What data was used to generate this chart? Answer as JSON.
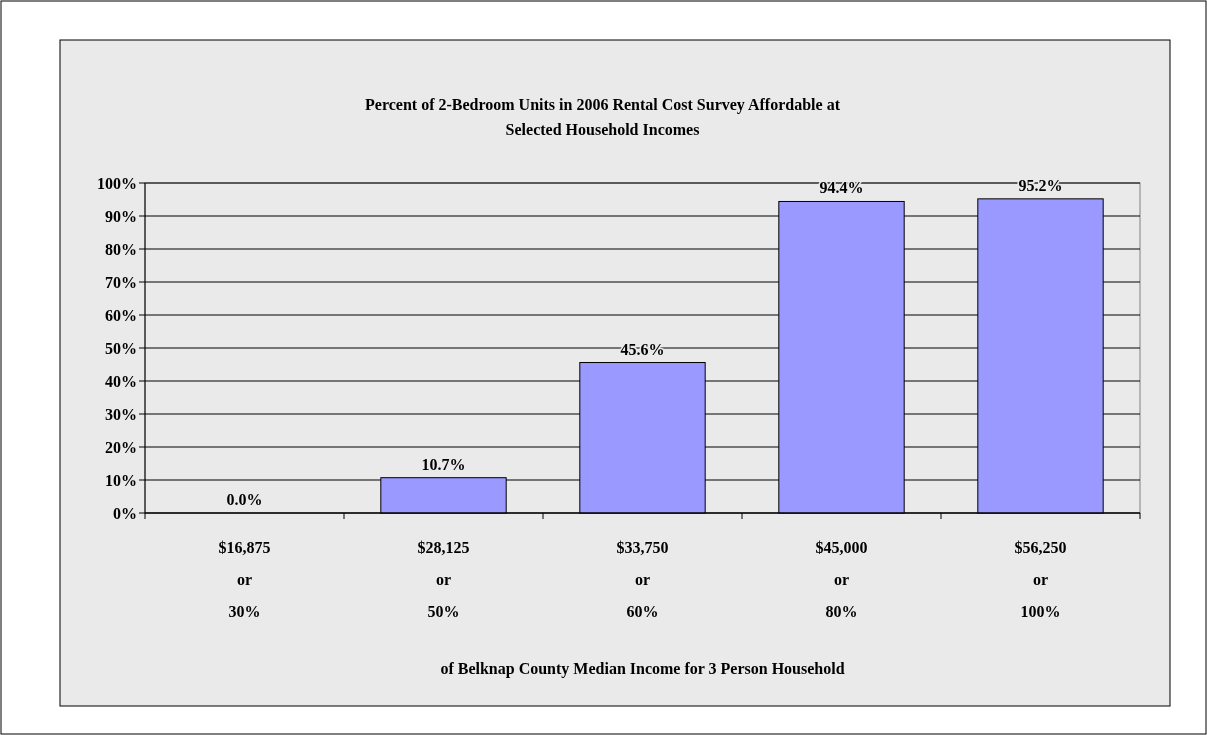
{
  "chart_data": {
    "type": "bar",
    "title": "Percent of 2-Bedroom Units in 2006 Rental Cost Survey Affordable at\nSelected Household Incomes",
    "xlabel": "of Belknap County Median Income for 3 Person Household",
    "categories": [
      "$16,875\nor\n30%",
      "$28,125\nor\n50%",
      "$33,750\nor\n60%",
      "$45,000\nor\n80%",
      "$56,250\nor\n100%"
    ],
    "values": [
      0,
      10.7,
      45.6,
      94.4,
      95.2
    ],
    "value_labels": [
      "0.0%",
      "10.7%",
      "45.6%",
      "94.4%",
      "95.2%"
    ],
    "color": "#9999ff",
    "ylim": [
      0,
      100
    ],
    "yticks": [
      {
        "value": 0,
        "label": "0%"
      },
      {
        "value": 10,
        "label": "10%"
      },
      {
        "value": 20,
        "label": "20%"
      },
      {
        "value": 30,
        "label": "30%"
      },
      {
        "value": 40,
        "label": "40%"
      },
      {
        "value": 50,
        "label": "50%"
      },
      {
        "value": 60,
        "label": "60%"
      },
      {
        "value": 70,
        "label": "70%"
      },
      {
        "value": 80,
        "label": "80%"
      },
      {
        "value": 90,
        "label": "90%"
      },
      {
        "value": 100,
        "label": "100%"
      }
    ],
    "grid": "y"
  }
}
